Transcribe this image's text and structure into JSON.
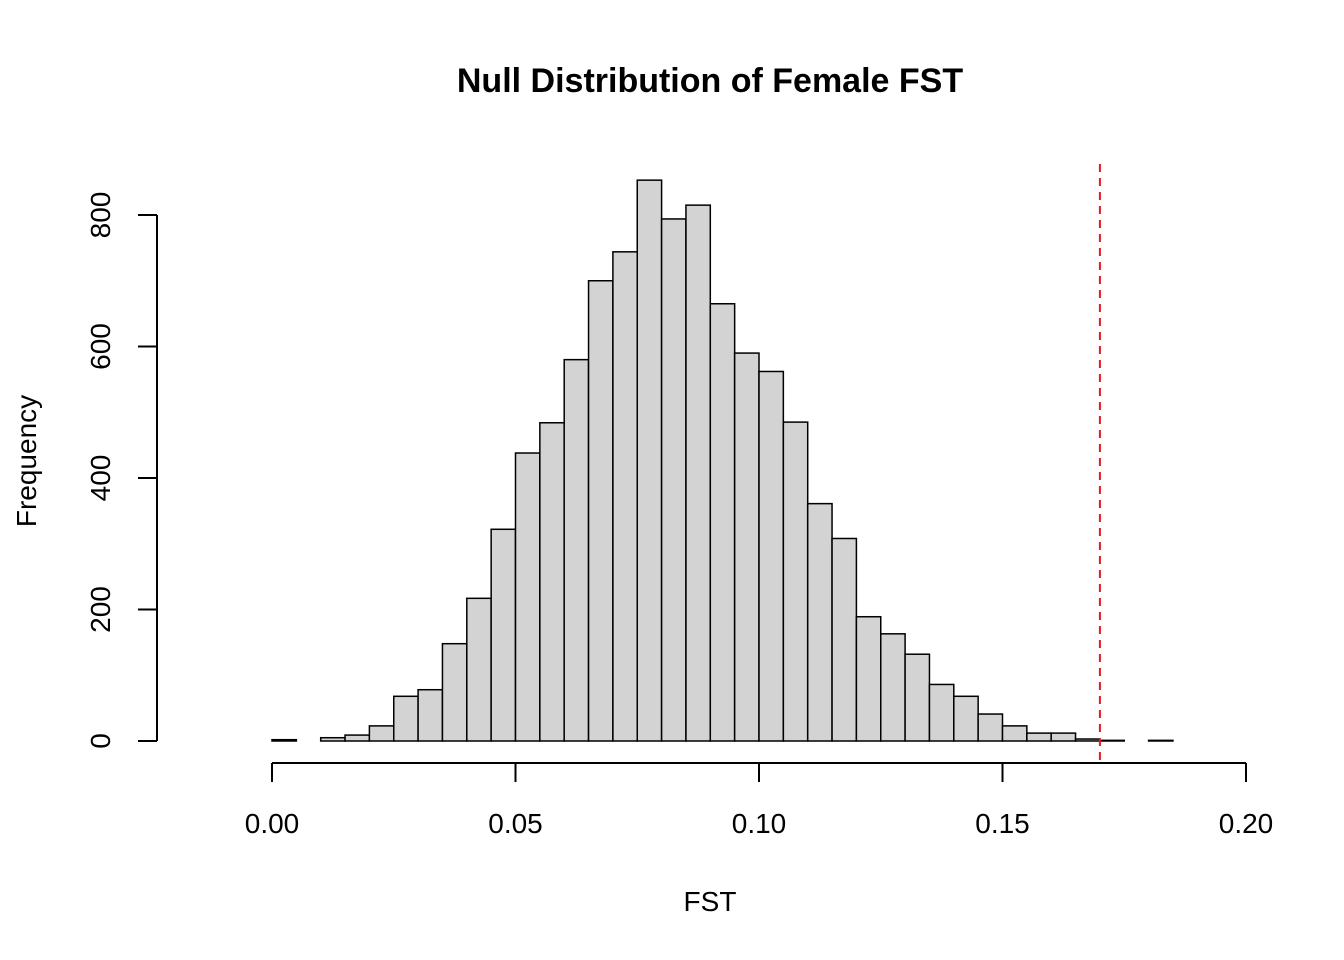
{
  "chart_data": {
    "type": "bar",
    "title": "Null Distribution of Female FST",
    "xlabel": "FST",
    "ylabel": "Frequency",
    "bin_width": 0.005,
    "bin_start": -0.015,
    "bins": [
      {
        "x0": -0.015,
        "x1": -0.01,
        "count": 0
      },
      {
        "x0": -0.01,
        "x1": -0.005,
        "count": 0
      },
      {
        "x0": -0.005,
        "x1": 0.0,
        "count": 0
      },
      {
        "x0": 0.0,
        "x1": 0.005,
        "count": 2
      },
      {
        "x0": 0.005,
        "x1": 0.01,
        "count": 0
      },
      {
        "x0": 0.01,
        "x1": 0.015,
        "count": 5
      },
      {
        "x0": 0.015,
        "x1": 0.02,
        "count": 9
      },
      {
        "x0": 0.02,
        "x1": 0.025,
        "count": 23
      },
      {
        "x0": 0.025,
        "x1": 0.03,
        "count": 68
      },
      {
        "x0": 0.03,
        "x1": 0.035,
        "count": 78
      },
      {
        "x0": 0.035,
        "x1": 0.04,
        "count": 148
      },
      {
        "x0": 0.04,
        "x1": 0.045,
        "count": 217
      },
      {
        "x0": 0.045,
        "x1": 0.05,
        "count": 322
      },
      {
        "x0": 0.05,
        "x1": 0.055,
        "count": 438
      },
      {
        "x0": 0.055,
        "x1": 0.06,
        "count": 484
      },
      {
        "x0": 0.06,
        "x1": 0.065,
        "count": 580
      },
      {
        "x0": 0.065,
        "x1": 0.07,
        "count": 700
      },
      {
        "x0": 0.07,
        "x1": 0.075,
        "count": 744
      },
      {
        "x0": 0.075,
        "x1": 0.08,
        "count": 853
      },
      {
        "x0": 0.08,
        "x1": 0.085,
        "count": 794
      },
      {
        "x0": 0.085,
        "x1": 0.09,
        "count": 815
      },
      {
        "x0": 0.09,
        "x1": 0.095,
        "count": 665
      },
      {
        "x0": 0.095,
        "x1": 0.1,
        "count": 590
      },
      {
        "x0": 0.1,
        "x1": 0.105,
        "count": 562
      },
      {
        "x0": 0.105,
        "x1": 0.11,
        "count": 485
      },
      {
        "x0": 0.11,
        "x1": 0.115,
        "count": 361
      },
      {
        "x0": 0.115,
        "x1": 0.12,
        "count": 308
      },
      {
        "x0": 0.12,
        "x1": 0.125,
        "count": 189
      },
      {
        "x0": 0.125,
        "x1": 0.13,
        "count": 163
      },
      {
        "x0": 0.13,
        "x1": 0.135,
        "count": 132
      },
      {
        "x0": 0.135,
        "x1": 0.14,
        "count": 86
      },
      {
        "x0": 0.14,
        "x1": 0.145,
        "count": 68
      },
      {
        "x0": 0.145,
        "x1": 0.15,
        "count": 41
      },
      {
        "x0": 0.15,
        "x1": 0.155,
        "count": 23
      },
      {
        "x0": 0.155,
        "x1": 0.16,
        "count": 12
      },
      {
        "x0": 0.16,
        "x1": 0.165,
        "count": 12
      },
      {
        "x0": 0.165,
        "x1": 0.17,
        "count": 3
      },
      {
        "x0": 0.17,
        "x1": 0.175,
        "count": 1
      },
      {
        "x0": 0.175,
        "x1": 0.18,
        "count": 0
      },
      {
        "x0": 0.18,
        "x1": 0.185,
        "count": 1
      },
      {
        "x0": 0.185,
        "x1": 0.19,
        "count": 0
      },
      {
        "x0": 0.19,
        "x1": 0.195,
        "count": 0
      }
    ],
    "xlim": [
      0.0,
      0.2
    ],
    "ylim": [
      0,
      880
    ],
    "x_ticks": [
      {
        "value": 0.0,
        "label": "0.00"
      },
      {
        "value": 0.05,
        "label": "0.05"
      },
      {
        "value": 0.1,
        "label": "0.10"
      },
      {
        "value": 0.15,
        "label": "0.15"
      },
      {
        "value": 0.2,
        "label": "0.20"
      }
    ],
    "y_ticks": [
      {
        "value": 0,
        "label": "0"
      },
      {
        "value": 200,
        "label": "200"
      },
      {
        "value": 400,
        "label": "400"
      },
      {
        "value": 600,
        "label": "600"
      },
      {
        "value": 800,
        "label": "800"
      }
    ],
    "reference_line": {
      "x": 0.17,
      "style": "dashed",
      "color": "#e41a1c"
    },
    "bar_fill": "#d3d3d3",
    "bar_stroke": "#000000",
    "grid": false
  }
}
